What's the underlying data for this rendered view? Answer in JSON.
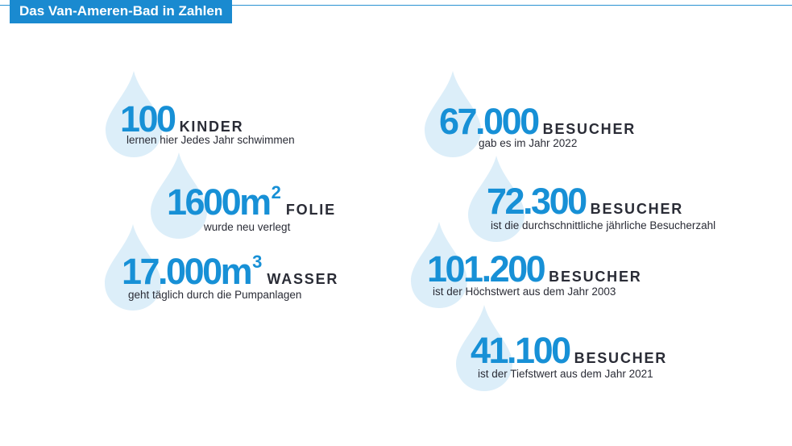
{
  "title": "Das Van-Ameren-Bad in Zahlen",
  "colors": {
    "accent": "#1a8ad0",
    "number": "#1790d6",
    "drop": "#dceef9",
    "text": "#2a2c36"
  },
  "icon": "water-drop-icon",
  "stats": [
    {
      "value": "100",
      "sup": "",
      "unit": "KINDER",
      "desc": "lernen hier Jedes Jahr schwimmen"
    },
    {
      "value": "1600m",
      "sup": "2",
      "unit": "FOLIE",
      "desc": "wurde neu verlegt"
    },
    {
      "value": "17.000m",
      "sup": "3",
      "unit": "WASSER",
      "desc": "geht täglich durch die Pumpanlagen"
    },
    {
      "value": "67.000",
      "sup": "",
      "unit": "BESUCHER",
      "desc": "gab es im Jahr 2022"
    },
    {
      "value": "72.300",
      "sup": "",
      "unit": "BESUCHER",
      "desc": "ist die durchschnittliche jährliche Besucherzahl"
    },
    {
      "value": "101.200",
      "sup": "",
      "unit": "BESUCHER",
      "desc": "ist der Höchstwert aus dem Jahr 2003"
    },
    {
      "value": "41.100",
      "sup": "",
      "unit": "BESUCHER",
      "desc": "ist der Tiefstwert aus dem Jahr 2021"
    }
  ]
}
